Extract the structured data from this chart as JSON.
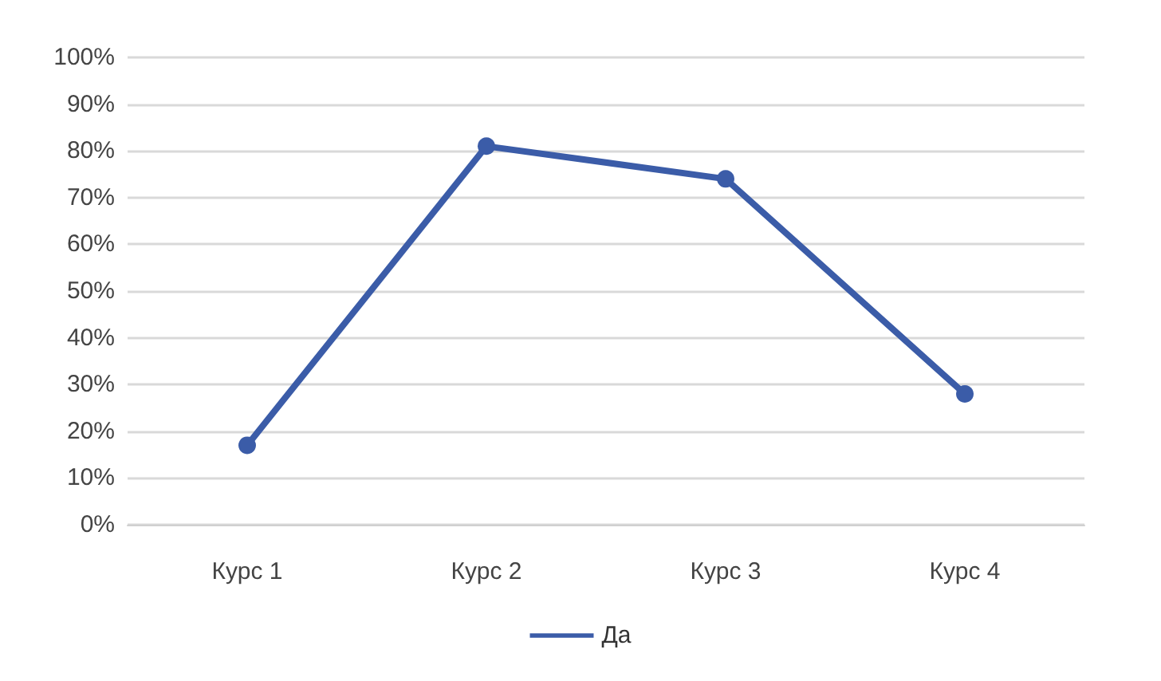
{
  "chart_data": {
    "type": "line",
    "categories": [
      "Курс 1",
      "Курс 2",
      "Курс 3",
      "Курс 4"
    ],
    "series": [
      {
        "name": "Да",
        "color": "#3b5ca8",
        "values": [
          17,
          81,
          74,
          28
        ]
      }
    ],
    "ylim": [
      0,
      100
    ],
    "yticks": [
      {
        "value": 0,
        "label": "0%"
      },
      {
        "value": 10,
        "label": "10%"
      },
      {
        "value": 20,
        "label": "20%"
      },
      {
        "value": 30,
        "label": "30%"
      },
      {
        "value": 40,
        "label": "40%"
      },
      {
        "value": 50,
        "label": "50%"
      },
      {
        "value": 60,
        "label": "60%"
      },
      {
        "value": 70,
        "label": "70%"
      },
      {
        "value": 80,
        "label": "80%"
      },
      {
        "value": 90,
        "label": "90%"
      },
      {
        "value": 100,
        "label": "100%"
      }
    ],
    "grid": "y",
    "legend": "bottom",
    "marker": "circle",
    "line_style": "solid"
  }
}
